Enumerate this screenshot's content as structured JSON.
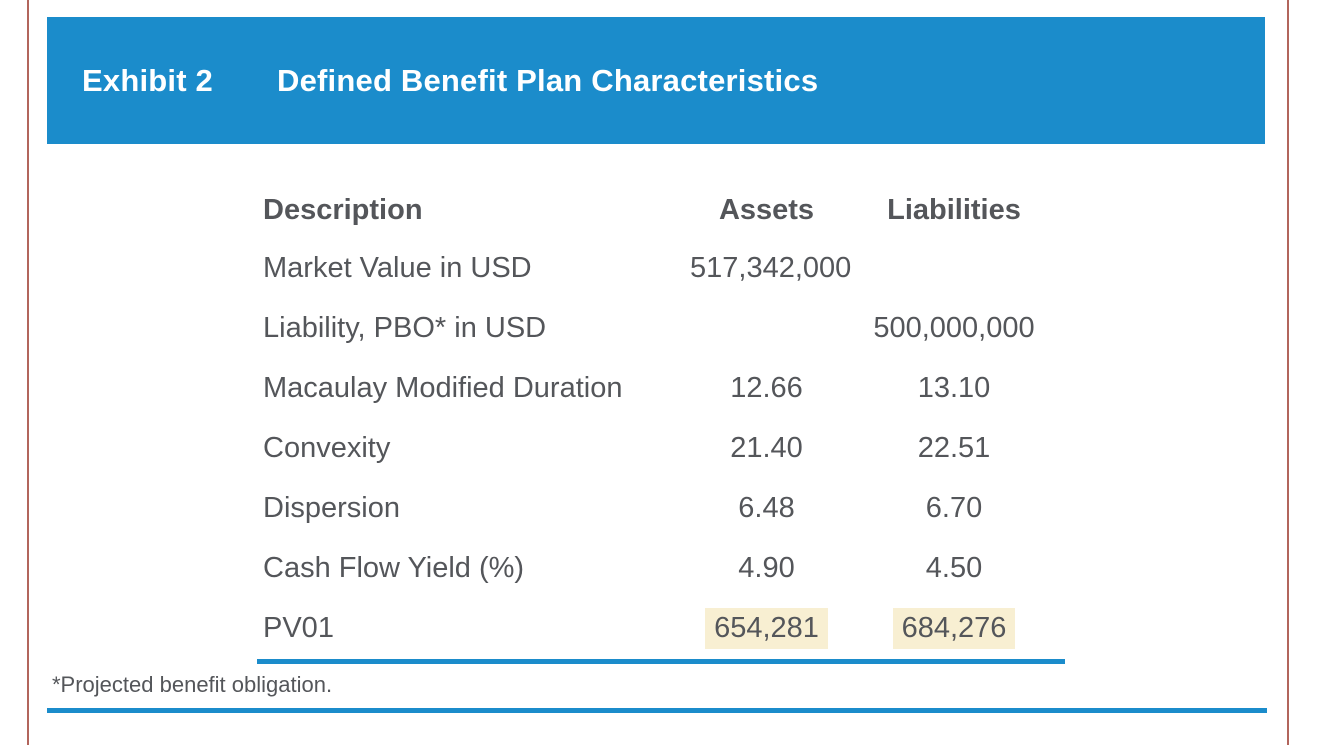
{
  "colors": {
    "accent_blue": "#1B8CCB",
    "page_border_red": "#B2655C",
    "text_gray": "#54565A",
    "highlight_cream": "#F8EFD2"
  },
  "banner": {
    "exhibit_label": "Exhibit 2",
    "title": "Defined Benefit Plan Characteristics"
  },
  "table": {
    "columns": {
      "description": "Description",
      "assets": "Assets",
      "liabilities": "Liabilities"
    },
    "rows": [
      {
        "description": "Market Value in USD",
        "assets": "517,342,000",
        "liabilities": ""
      },
      {
        "description": "Liability, PBO* in USD",
        "assets": "",
        "liabilities": "500,000,000"
      },
      {
        "description": "Macaulay Modified Duration",
        "assets": "12.66",
        "liabilities": "13.10"
      },
      {
        "description": "Convexity",
        "assets": "21.40",
        "liabilities": "22.51"
      },
      {
        "description": "Dispersion",
        "assets": "6.48",
        "liabilities": "6.70"
      },
      {
        "description": "Cash Flow Yield (%)",
        "assets": "4.90",
        "liabilities": "4.50"
      },
      {
        "description": "PV01",
        "assets": "654,281",
        "liabilities": "684,276",
        "highlighted": true
      }
    ]
  },
  "footnote": "*Projected benefit obligation."
}
